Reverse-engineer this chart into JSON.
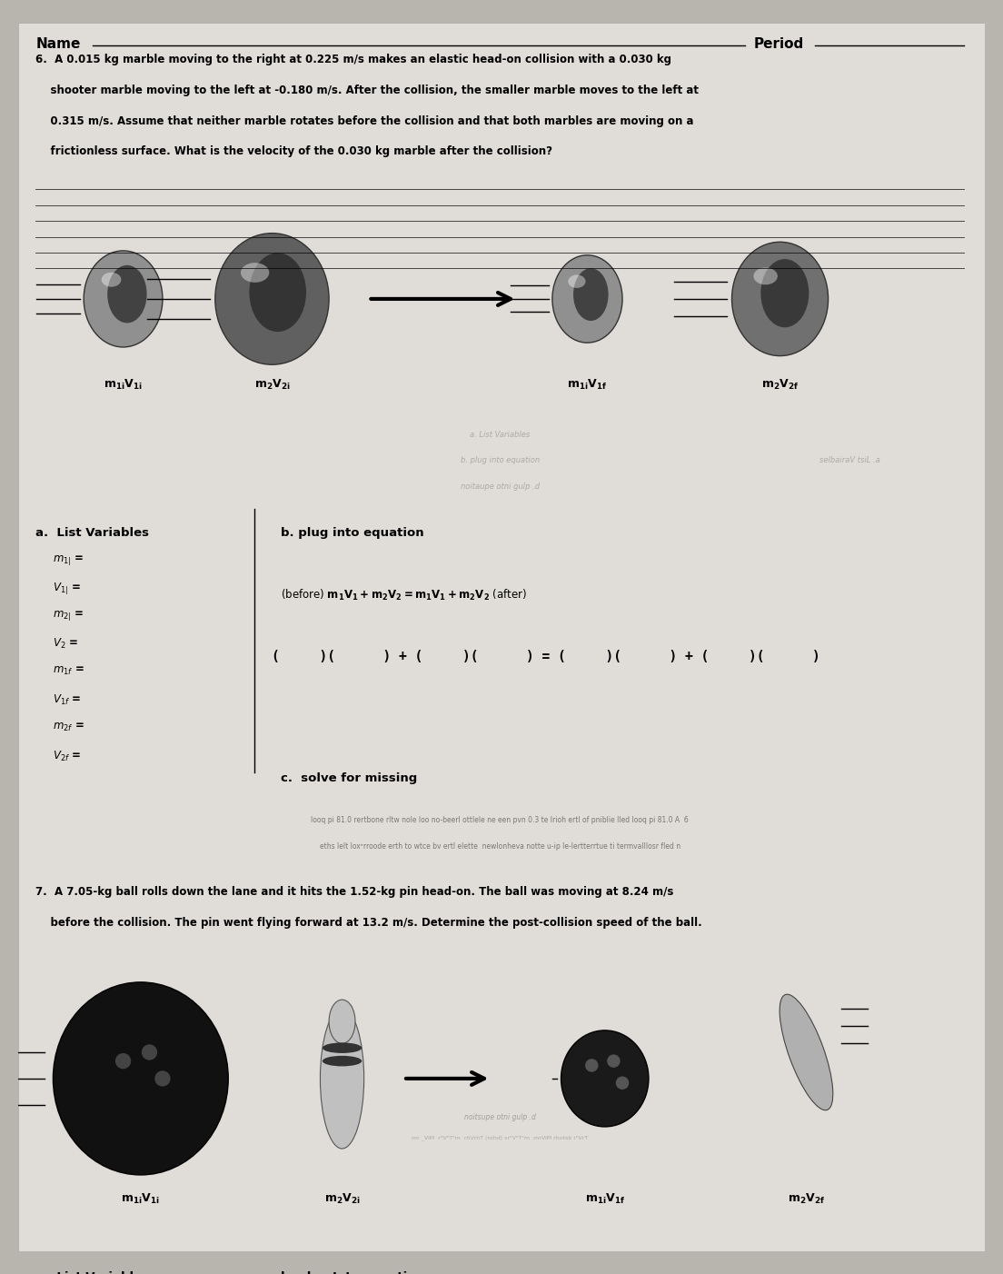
{
  "bg_color": "#b8b5ae",
  "paper_color": "#e0ddd8",
  "q6_lines": [
    "6.  A 0.015 kg marble moving to the right at 0.225 m/s makes an elastic head-on collision with a 0.030 kg",
    "    shooter marble moving to the left at -0.180 m/s. After the collision, the smaller marble moves to the left at",
    "    0.315 m/s. Assume that neither marble rotates before the collision and that both marbles are moving on a",
    "    frictionless surface. What is the velocity of the 0.030 kg marble after the collision?"
  ],
  "q7_lines": [
    "7.  A 7.05-kg ball rolls down the lane and it hits the 1.52-kg pin head-on. The ball was moving at 8.24 m/s",
    "    before the collision. The pin went flying forward at 13.2 m/s. Determine the post-collision speed of the ball."
  ],
  "vars_labels": [
    "m₁₁ =",
    "V₁₁ =",
    "m₂₁ =",
    "V₂ =",
    "m₁f =",
    "V₁f =",
    "m₂f =",
    "V₂f ="
  ],
  "marble_labels_q6": [
    "m₁iV₁i",
    "m₂V₂i",
    "m₁iV₁f",
    "m₂V₂f"
  ],
  "marble_labels_q7": [
    "m₁iV₁i",
    "m₂V₂i",
    "m₁iV₁f",
    "m₂V₂f"
  ],
  "separator_text1": "looq pi 81.0 rertbone rltw nole loo no-beerl ottlele ne een pvn 0.3 te lrioh ertl of pniblie lled looq pi 81.0 A  6",
  "separator_text2": "eths lelt loxermrroode erth to wtce bv ertl elᵎtte  newlonheva notte u-ip le-lertterrtue ti termᵎvalllosr fled n"
}
